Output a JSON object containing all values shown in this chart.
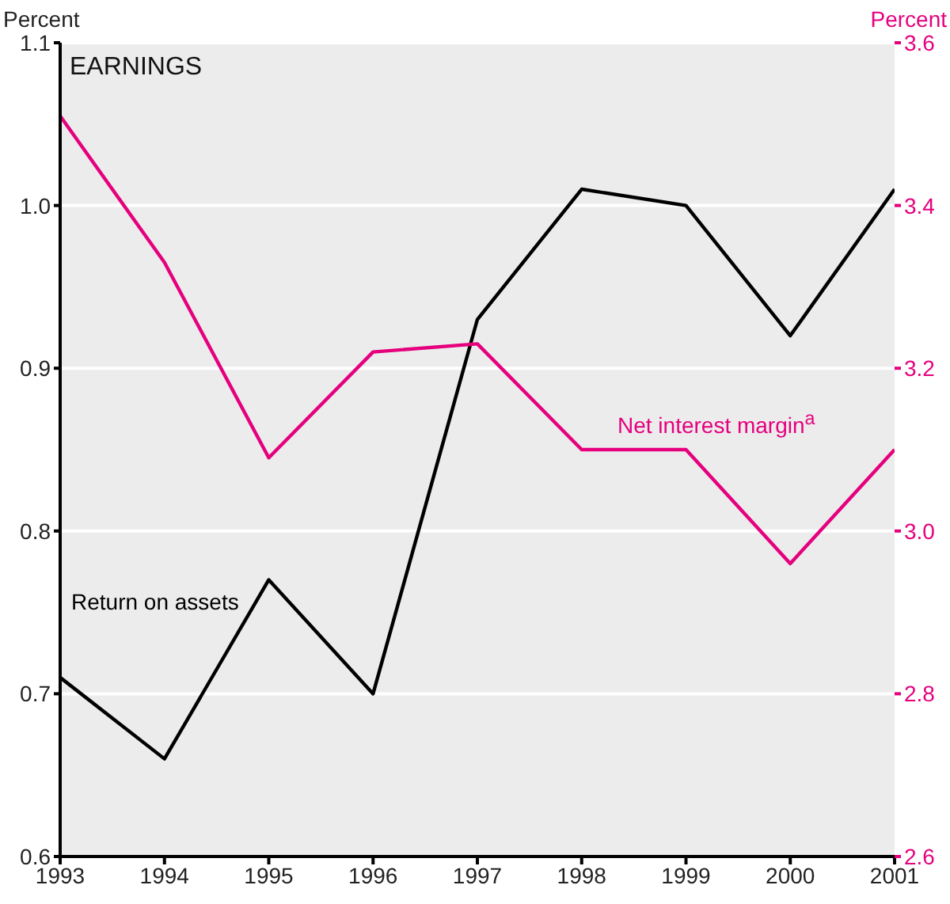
{
  "chart_data": {
    "type": "line",
    "title": "EARNINGS",
    "ylabel": "Percent",
    "y2label": "Percent",
    "x": [
      1993,
      1994,
      1995,
      1996,
      1997,
      1998,
      1999,
      2000,
      2001
    ],
    "xlim": [
      1993,
      2001
    ],
    "xticks": [
      1993,
      1994,
      1995,
      1996,
      1997,
      1998,
      1999,
      2000,
      2001
    ],
    "ylim": [
      0.6,
      1.1
    ],
    "yticks": [
      0.6,
      0.7,
      0.8,
      0.9,
      {
        "value": 1,
        "label": "1.0"
      },
      1.1
    ],
    "y2lim": [
      2.6,
      3.6
    ],
    "y2ticks": [
      2.6,
      2.8,
      {
        "value": 3,
        "label": "3.0"
      },
      3.2,
      3.4,
      3.6
    ],
    "grid": "y",
    "legend": false,
    "marker": "none",
    "line_style": "solid",
    "series": [
      {
        "name": "Return on assets",
        "color": "#000000",
        "values": [
          0.71,
          0.66,
          0.77,
          0.7,
          0.93,
          1.01,
          1.0,
          0.92,
          1.01
        ]
      },
      {
        "name": "Net interest margin$^{a}$",
        "color": "#e5007e",
        "axis": "y2",
        "values": [
          3.51,
          3.33,
          3.09,
          3.22,
          3.23,
          3.1,
          3.1,
          2.96,
          3.1
        ]
      }
    ]
  }
}
